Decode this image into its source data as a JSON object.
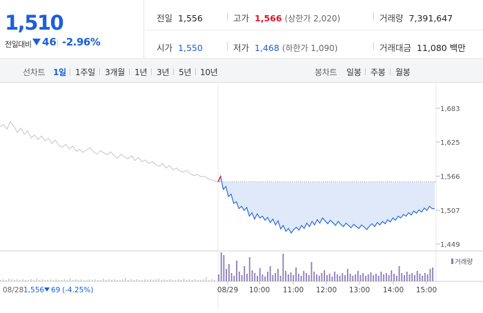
{
  "quote": {
    "price": "1,510",
    "change_label": "전일대비",
    "change_amount": "46",
    "change_percent": "-2.96%"
  },
  "stats": {
    "prev_close": {
      "label": "전일",
      "value": "1,556"
    },
    "open": {
      "label": "시가",
      "value": "1,550"
    },
    "high": {
      "label": "고가",
      "value": "1,566",
      "limit": "(상한가 2,020)"
    },
    "low": {
      "label": "저가",
      "value": "1,468",
      "limit": "(하한가 1,090)"
    },
    "volume": {
      "label": "거래량",
      "value": "7,391,647"
    },
    "amount": {
      "label": "거래대금",
      "value": "11,080 백만"
    }
  },
  "toolbar": {
    "line_chart_title": "선차트",
    "periods": [
      "1일",
      "1주일",
      "3개월",
      "1년",
      "3년",
      "5년",
      "10년"
    ],
    "active_period": "1일",
    "candle_title": "봉차트",
    "candle_types": [
      "일봉",
      "주봉",
      "월봉"
    ]
  },
  "chart_data": {
    "type": "line",
    "y_ticks": [
      "1,683",
      "1,625",
      "1,566",
      "1,507",
      "1,449"
    ],
    "ylim": [
      1449,
      1683
    ],
    "x_ticks": [
      "08/29",
      "10:00",
      "11:00",
      "12:00",
      "13:00",
      "14:00",
      "15:00"
    ],
    "prev_day_label": "08/28",
    "prev_day_summary": {
      "close": "1,556",
      "change": "69",
      "percent": "(-4.25%)"
    },
    "volume_legend": "거래량",
    "reference_level": 1556,
    "series": [
      {
        "values": [
          1651,
          1655,
          1647,
          1660,
          1652,
          1641,
          1649,
          1638,
          1644,
          1632,
          1637,
          1629,
          1635,
          1627,
          1631,
          1622,
          1628,
          1619,
          1616,
          1621,
          1613,
          1618,
          1609,
          1612,
          1607,
          1611,
          1615,
          1608,
          1604,
          1610,
          1606,
          1603,
          1608,
          1601,
          1597,
          1604,
          1599,
          1596,
          1601,
          1593,
          1598,
          1591,
          1594,
          1588,
          1591,
          1586,
          1583,
          1588,
          1580,
          1584,
          1577,
          1580,
          1575,
          1573,
          1576,
          1570,
          1567,
          1569,
          1565,
          1566,
          1562,
          1560,
          1558,
          1556
        ]
      },
      {
        "values": [
          1556,
          1566,
          1543,
          1548,
          1531,
          1535,
          1519,
          1522,
          1510,
          1514,
          1507,
          1512,
          1497,
          1503,
          1492,
          1501,
          1494,
          1497,
          1490,
          1495,
          1486,
          1492,
          1482,
          1489,
          1475,
          1481,
          1471,
          1476,
          1468,
          1474,
          1478,
          1473,
          1481,
          1476,
          1485,
          1479,
          1488,
          1482,
          1491,
          1485,
          1494,
          1489,
          1484,
          1490,
          1486,
          1481,
          1488,
          1483,
          1479,
          1485,
          1481,
          1477,
          1483,
          1479,
          1476,
          1482,
          1478,
          1474,
          1480,
          1484,
          1479,
          1486,
          1482,
          1488,
          1484,
          1491,
          1487,
          1494,
          1490,
          1497,
          1494,
          1500,
          1497,
          1503,
          1499,
          1506,
          1502,
          1508,
          1504,
          1511,
          1507,
          1514,
          1510,
          1510
        ]
      }
    ],
    "volume": {
      "prev_day": [
        2,
        3,
        2,
        4,
        3,
        2,
        3,
        2,
        3,
        2,
        2,
        3,
        2,
        4,
        2,
        3,
        2,
        2,
        3,
        2,
        3,
        2,
        2,
        3,
        2,
        4,
        2,
        3,
        2,
        3,
        2,
        2,
        3,
        2,
        3,
        2,
        2,
        4,
        2,
        3,
        2,
        3,
        2,
        2,
        3,
        5,
        2,
        3,
        2,
        3,
        2,
        2,
        3,
        2,
        3,
        2,
        3,
        4,
        2,
        3,
        2,
        3,
        2,
        2,
        3,
        2,
        4,
        2,
        3,
        2,
        3,
        2,
        2,
        3,
        6,
        2,
        3,
        2
      ],
      "today": [
        10,
        42,
        38,
        18,
        25,
        12,
        8,
        30,
        14,
        9,
        22,
        11,
        35,
        16,
        12,
        8,
        19,
        10,
        7,
        14,
        22,
        9,
        12,
        18,
        8,
        40,
        15,
        10,
        13,
        9,
        20,
        11,
        8,
        15,
        12,
        9,
        28,
        14,
        10,
        8,
        12,
        16,
        9,
        11,
        7,
        14,
        10,
        8,
        12,
        9,
        18,
        11,
        8,
        10,
        15,
        9,
        12,
        8,
        10,
        13,
        9,
        11,
        8,
        14,
        10,
        12,
        9,
        16,
        11,
        8,
        22,
        12,
        9,
        14,
        10,
        12,
        9,
        15,
        11,
        8,
        12,
        10,
        18,
        20
      ]
    }
  }
}
